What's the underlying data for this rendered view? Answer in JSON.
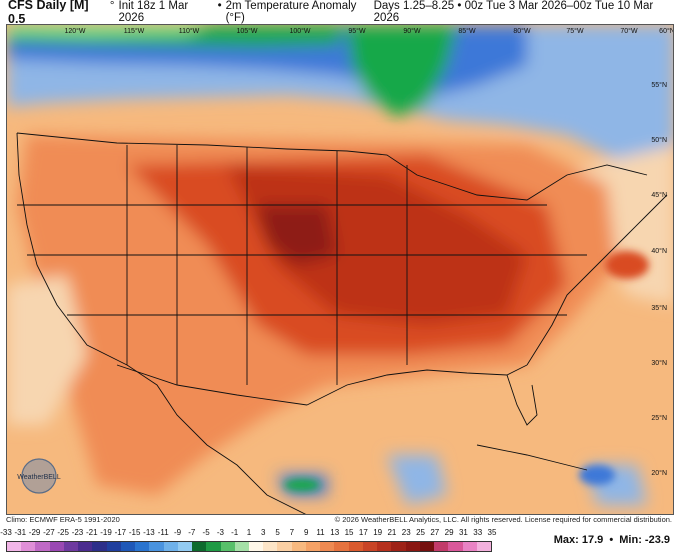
{
  "header": {
    "model": "CFS Daily [M] 0.5",
    "degree": "°",
    "init": "Init 18z 1 Mar 2026",
    "bullet": "•",
    "field": "2m Temperature Anomaly (°F)",
    "days": "Days 1.25–8.25",
    "valid": "00z Tue 3 Mar 2026–00z Tue 10 Mar 2026"
  },
  "map": {
    "lon_labels": [
      "120°W",
      "115°W",
      "110°W",
      "105°W",
      "100°W",
      "95°W",
      "90°W",
      "85°W",
      "80°W",
      "75°W",
      "70°W",
      "60°N"
    ],
    "lat_labels": [
      "55°N",
      "50°N",
      "45°N",
      "40°N",
      "35°N",
      "30°N",
      "25°N",
      "20°N"
    ],
    "colors": {
      "ocean_warm": "#f6b97e",
      "land_warm": "#f08c55",
      "hot": "#d94b22",
      "hotter": "#bd3018",
      "hottest": "#8e1c12",
      "cool": "#8fb6e6",
      "cold": "#3c78d8",
      "green": "#19a84a",
      "light_green": "#7ee08a",
      "neutral": "#f7d6b0"
    }
  },
  "logo": {
    "text": "WeatherBELL"
  },
  "footer": {
    "climo": "Climo: ECMWF ERA-5 1991-2020",
    "copyright": "© 2026 WeatherBELL Analytics, LLC. All rights reserved. License required for commercial distribution."
  },
  "colorbar": {
    "ticks": [
      "-33",
      "-31",
      "-29",
      "-27",
      "-25",
      "-23",
      "-21",
      "-19",
      "-17",
      "-15",
      "-13",
      "-11",
      "-9",
      "-7",
      "-5",
      "-3",
      "-1",
      "1",
      "3",
      "5",
      "7",
      "9",
      "11",
      "13",
      "15",
      "17",
      "19",
      "21",
      "23",
      "25",
      "27",
      "29",
      "31",
      "33",
      "35"
    ],
    "colors": [
      "#f2b6e8",
      "#e08fd8",
      "#c06ac6",
      "#9a49b3",
      "#6e3aa0",
      "#4b2c8f",
      "#2d2f8a",
      "#203f9e",
      "#1f58b8",
      "#2a74cf",
      "#4a93df",
      "#6fb1ea",
      "#93cbf2",
      "#0e6b2e",
      "#1f9a45",
      "#58c06a",
      "#a5e0a7",
      "#fff7e8",
      "#fde5c7",
      "#fbd0a4",
      "#f8b97f",
      "#f5a266",
      "#ef8a52",
      "#e6733f",
      "#d95a2e",
      "#c84426",
      "#b5301d",
      "#9e2217",
      "#8a1712",
      "#75100f",
      "#c23b6a",
      "#d9589a",
      "#e983c4",
      "#f3b1dd"
    ]
  },
  "stats": {
    "max_label": "Max:",
    "max_value": "17.9",
    "sep": "•",
    "min_label": "Min:",
    "min_value": "-23.9"
  }
}
